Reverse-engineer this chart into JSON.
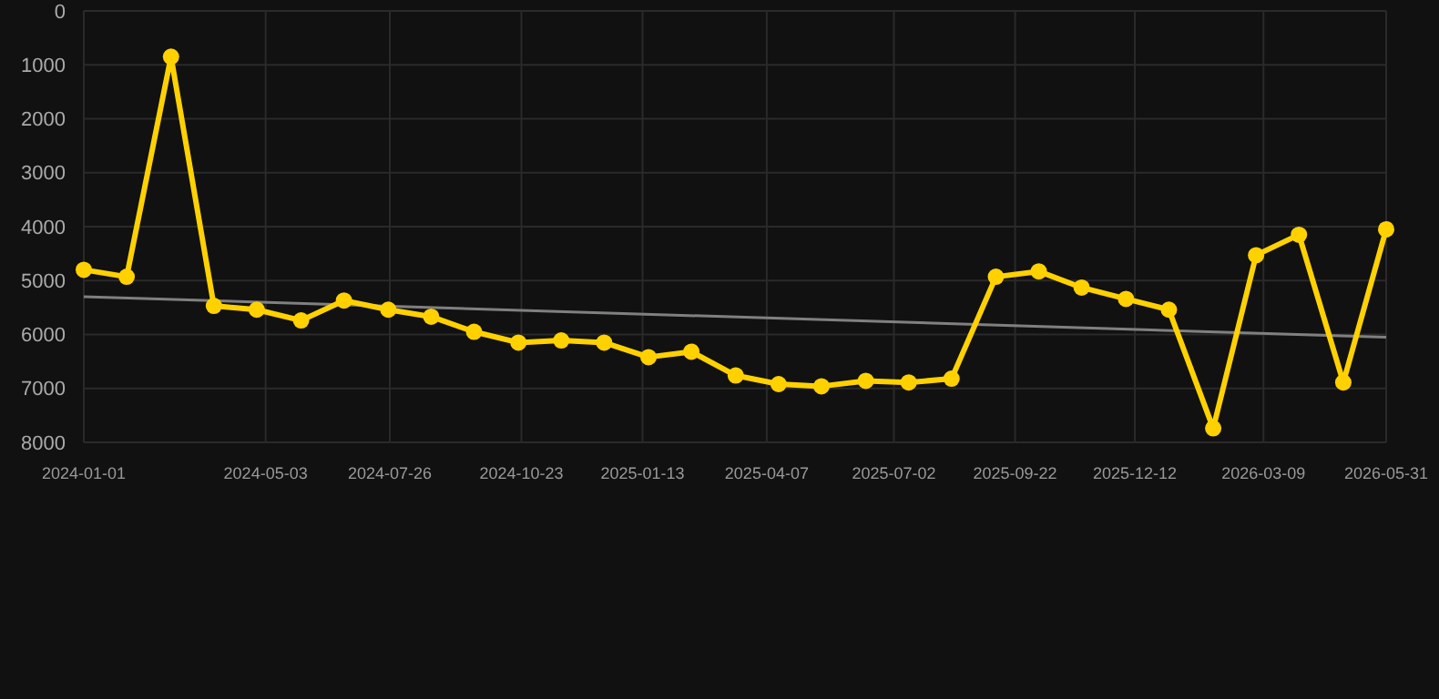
{
  "chart_data": {
    "type": "line",
    "x": [
      "2024-01-01",
      "2024-01-30",
      "2024-02-29",
      "2024-03-29",
      "2024-04-27",
      "2024-05-27",
      "2024-06-25",
      "2024-07-25",
      "2024-08-23",
      "2024-09-21",
      "2024-10-21",
      "2024-11-19",
      "2024-12-18",
      "2025-01-17",
      "2025-02-15",
      "2025-03-17",
      "2025-04-15",
      "2025-05-14",
      "2025-06-13",
      "2025-07-12",
      "2025-08-10",
      "2025-09-09",
      "2025-10-08",
      "2025-11-06",
      "2025-12-06",
      "2026-01-04",
      "2026-02-03",
      "2026-03-04",
      "2026-04-02",
      "2026-05-02",
      "2026-05-31"
    ],
    "series": [
      {
        "color": "#ffd100",
        "marker": "circle",
        "values": [
          4800,
          4930,
          850,
          5470,
          5540,
          5740,
          5370,
          5540,
          5670,
          5950,
          6150,
          6110,
          6150,
          6420,
          6320,
          6760,
          6920,
          6960,
          6860,
          6890,
          6820,
          4930,
          4830,
          5130,
          5340,
          5540,
          7740,
          4530,
          4150,
          6890,
          4050
        ]
      },
      {
        "type": "line",
        "color": "#808080",
        "marker": "none",
        "x": [
          "2024-01-01",
          "2026-05-31"
        ],
        "values": [
          5300,
          6050
        ]
      }
    ],
    "ylim": [
      8000,
      0
    ],
    "yticks": [
      0,
      1000,
      2000,
      3000,
      4000,
      5000,
      6000,
      7000,
      8000
    ],
    "xlim": [
      "2024-01-01",
      "2026-05-31"
    ],
    "xticks": [
      "2024-01-01",
      "2024-05-03",
      "2024-07-26",
      "2024-10-23",
      "2025-01-13",
      "2025-04-07",
      "2025-07-02",
      "2025-09-22",
      "2025-12-12",
      "2026-03-09",
      "2026-05-31"
    ],
    "grid": true
  }
}
